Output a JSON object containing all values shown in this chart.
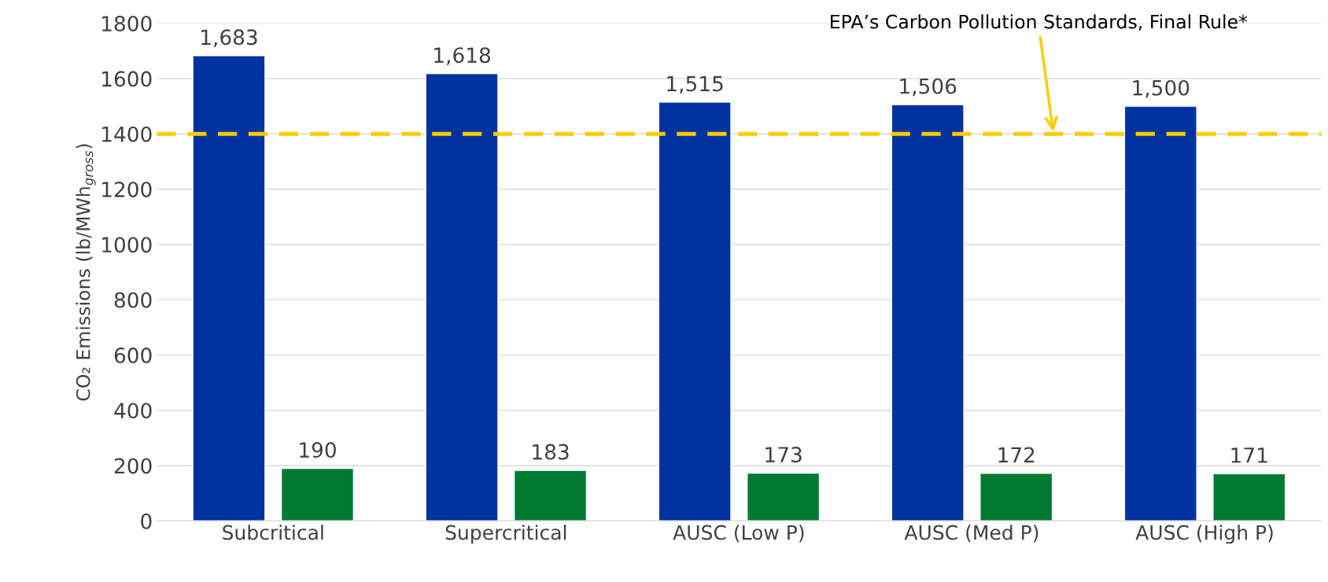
{
  "chart_data": {
    "type": "bar",
    "ylabel": "CO₂ Emissions (lb/MWh$_{gross}$)",
    "categories": [
      "Subcritical",
      "Supercritical",
      "AUSC (Low P)",
      "AUSC (Med P)",
      "AUSC (High P)"
    ],
    "series": [
      {
        "color": "#0033a0",
        "values": [
          1683,
          1618,
          1515,
          1506,
          1500
        ],
        "value_labels": [
          "1,683",
          "1,618",
          "1,515",
          "1,506",
          "1,500"
        ]
      },
      {
        "color": "#007a33",
        "values": [
          190,
          183,
          173,
          172,
          171
        ],
        "value_labels": [
          "190",
          "183",
          "173",
          "172",
          "171"
        ]
      }
    ],
    "ylim": [
      0,
      1800
    ],
    "yticks": [
      0,
      200,
      400,
      600,
      800,
      1000,
      1200,
      1400,
      1600,
      1800
    ],
    "grid": "y",
    "legend": false,
    "ref_lines": [
      {
        "axis": "y",
        "value": 1400,
        "label": "EPA’s Carbon Pollution Standards, Final Rule*",
        "color": "#ffcc00",
        "line_style": "dashed"
      }
    ]
  }
}
